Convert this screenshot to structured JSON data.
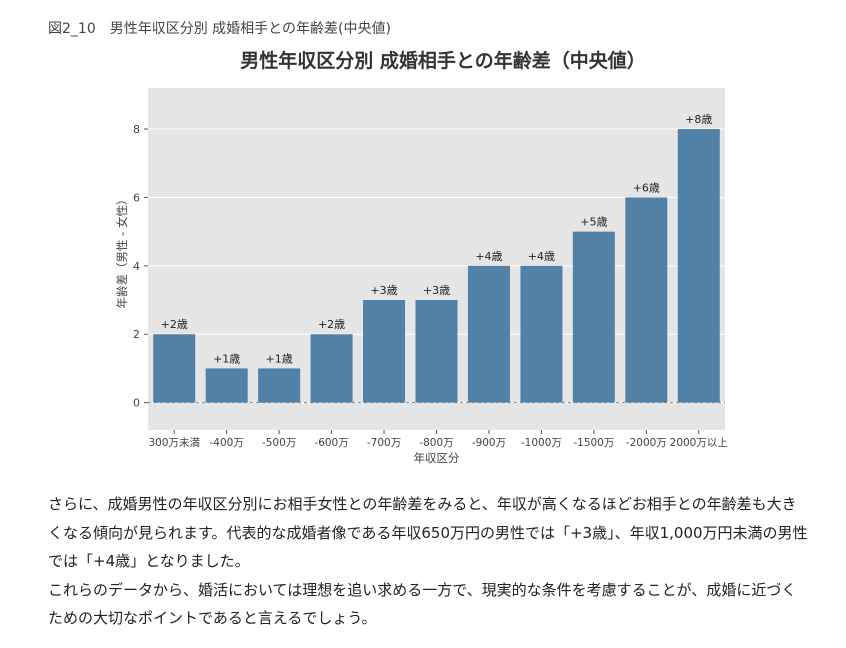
{
  "caption": "図2_10　男性年収区分別 成婚相手との年齢差(中央値)",
  "chart_data": {
    "type": "bar",
    "title": "男性年収区分別 成婚相手との年齢差（中央値）",
    "xlabel": "年収区分",
    "ylabel": "年齢差（男性 - 女性）",
    "categories": [
      "300万未満",
      "-400万",
      "-500万",
      "-600万",
      "-700万",
      "-800万",
      "-900万",
      "-1000万",
      "-1500万",
      "-2000万",
      "2000万以上"
    ],
    "values": [
      2,
      1,
      1,
      2,
      3,
      3,
      4,
      4,
      5,
      6,
      8
    ],
    "data_labels": [
      "+2歳",
      "+1歳",
      "+1歳",
      "+2歳",
      "+3歳",
      "+3歳",
      "+4歳",
      "+4歳",
      "+5歳",
      "+6歳",
      "+8歳"
    ],
    "yticks": [
      0,
      2,
      4,
      6,
      8
    ],
    "ylim": [
      -0.8,
      9.2
    ],
    "grid": true,
    "bar_color": "#5281a8",
    "background": "#e5e5e5"
  },
  "body": {
    "p1": "さらに、成婚男性の年収区分別にお相手女性との年齢差をみると、年収が高くなるほどお相手との年齢差も大きくなる傾向が見られます。代表的な成婚者像である年収650万円の男性では「+3歳」、年収1,000万円未満の男性では「+4歳」となりました。",
    "p2": "これらのデータから、婚活においては理想を追い求める一方で、現実的な条件を考慮することが、成婚に近づくための大切なポイントであると言えるでしょう。"
  }
}
